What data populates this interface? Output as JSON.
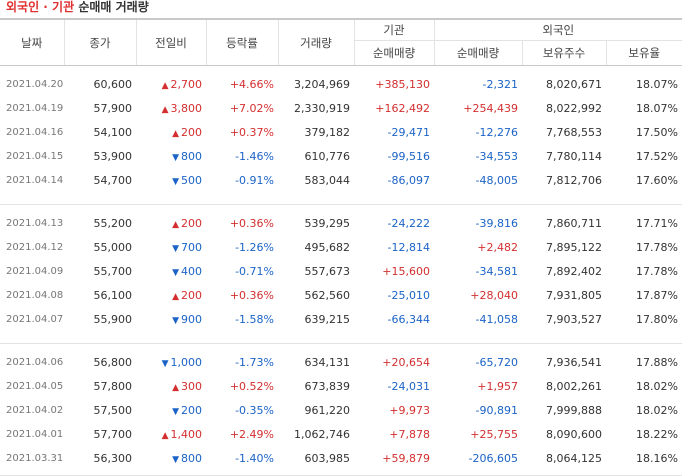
{
  "title": {
    "part1": "외국인 · 기관",
    "part2": "순매매 거래량"
  },
  "headers": {
    "date": "날짜",
    "close": "종가",
    "change": "전일비",
    "rate": "등락률",
    "volume": "거래량",
    "institution": "기관",
    "foreign": "외국인",
    "inst_net": "순매매량",
    "foreign_net": "순매매량",
    "foreign_holdings": "보유주수",
    "foreign_ratio": "보유율"
  },
  "groups": [
    [
      {
        "date": "2021.04.20",
        "close": "60,600",
        "dir": "up",
        "change": "2,700",
        "rate": "+4.66%",
        "volume": "3,204,969",
        "inst": "+385,130",
        "foreign": "-2,321",
        "hold": "8,020,671",
        "ratio": "18.07%"
      },
      {
        "date": "2021.04.19",
        "close": "57,900",
        "dir": "up",
        "change": "3,800",
        "rate": "+7.02%",
        "volume": "2,330,919",
        "inst": "+162,492",
        "foreign": "+254,439",
        "hold": "8,022,992",
        "ratio": "18.07%"
      },
      {
        "date": "2021.04.16",
        "close": "54,100",
        "dir": "up",
        "change": "200",
        "rate": "+0.37%",
        "volume": "379,182",
        "inst": "-29,471",
        "foreign": "-12,276",
        "hold": "7,768,553",
        "ratio": "17.50%"
      },
      {
        "date": "2021.04.15",
        "close": "53,900",
        "dir": "down",
        "change": "800",
        "rate": "-1.46%",
        "volume": "610,776",
        "inst": "-99,516",
        "foreign": "-34,553",
        "hold": "7,780,114",
        "ratio": "17.52%"
      },
      {
        "date": "2021.04.14",
        "close": "54,700",
        "dir": "down",
        "change": "500",
        "rate": "-0.91%",
        "volume": "583,044",
        "inst": "-86,097",
        "foreign": "-48,005",
        "hold": "7,812,706",
        "ratio": "17.60%"
      }
    ],
    [
      {
        "date": "2021.04.13",
        "close": "55,200",
        "dir": "up",
        "change": "200",
        "rate": "+0.36%",
        "volume": "539,295",
        "inst": "-24,222",
        "foreign": "-39,816",
        "hold": "7,860,711",
        "ratio": "17.71%"
      },
      {
        "date": "2021.04.12",
        "close": "55,000",
        "dir": "down",
        "change": "700",
        "rate": "-1.26%",
        "volume": "495,682",
        "inst": "-12,814",
        "foreign": "+2,482",
        "hold": "7,895,122",
        "ratio": "17.78%"
      },
      {
        "date": "2021.04.09",
        "close": "55,700",
        "dir": "down",
        "change": "400",
        "rate": "-0.71%",
        "volume": "557,673",
        "inst": "+15,600",
        "foreign": "-34,581",
        "hold": "7,892,402",
        "ratio": "17.78%"
      },
      {
        "date": "2021.04.08",
        "close": "56,100",
        "dir": "up",
        "change": "200",
        "rate": "+0.36%",
        "volume": "562,560",
        "inst": "-25,010",
        "foreign": "+28,040",
        "hold": "7,931,805",
        "ratio": "17.87%"
      },
      {
        "date": "2021.04.07",
        "close": "55,900",
        "dir": "down",
        "change": "900",
        "rate": "-1.58%",
        "volume": "639,215",
        "inst": "-66,344",
        "foreign": "-41,058",
        "hold": "7,903,527",
        "ratio": "17.80%"
      }
    ],
    [
      {
        "date": "2021.04.06",
        "close": "56,800",
        "dir": "down",
        "change": "1,000",
        "rate": "-1.73%",
        "volume": "634,131",
        "inst": "+20,654",
        "foreign": "-65,720",
        "hold": "7,936,541",
        "ratio": "17.88%"
      },
      {
        "date": "2021.04.05",
        "close": "57,800",
        "dir": "up",
        "change": "300",
        "rate": "+0.52%",
        "volume": "673,839",
        "inst": "-24,031",
        "foreign": "+1,957",
        "hold": "8,002,261",
        "ratio": "18.02%"
      },
      {
        "date": "2021.04.02",
        "close": "57,500",
        "dir": "down",
        "change": "200",
        "rate": "-0.35%",
        "volume": "961,220",
        "inst": "+9,973",
        "foreign": "-90,891",
        "hold": "7,999,888",
        "ratio": "18.02%"
      },
      {
        "date": "2021.04.01",
        "close": "57,700",
        "dir": "up",
        "change": "1,400",
        "rate": "+2.49%",
        "volume": "1,062,746",
        "inst": "+7,878",
        "foreign": "+25,755",
        "hold": "8,090,600",
        "ratio": "18.22%"
      },
      {
        "date": "2021.03.31",
        "close": "56,300",
        "dir": "down",
        "change": "800",
        "rate": "-1.40%",
        "volume": "603,985",
        "inst": "+59,879",
        "foreign": "-206,605",
        "hold": "8,064,125",
        "ratio": "18.16%"
      }
    ]
  ],
  "icons": {
    "up": "triangle-up-icon",
    "down": "triangle-down-icon"
  },
  "colors": {
    "up": "#d32f2f",
    "down": "#1b63c6",
    "title": "#e0302f"
  }
}
